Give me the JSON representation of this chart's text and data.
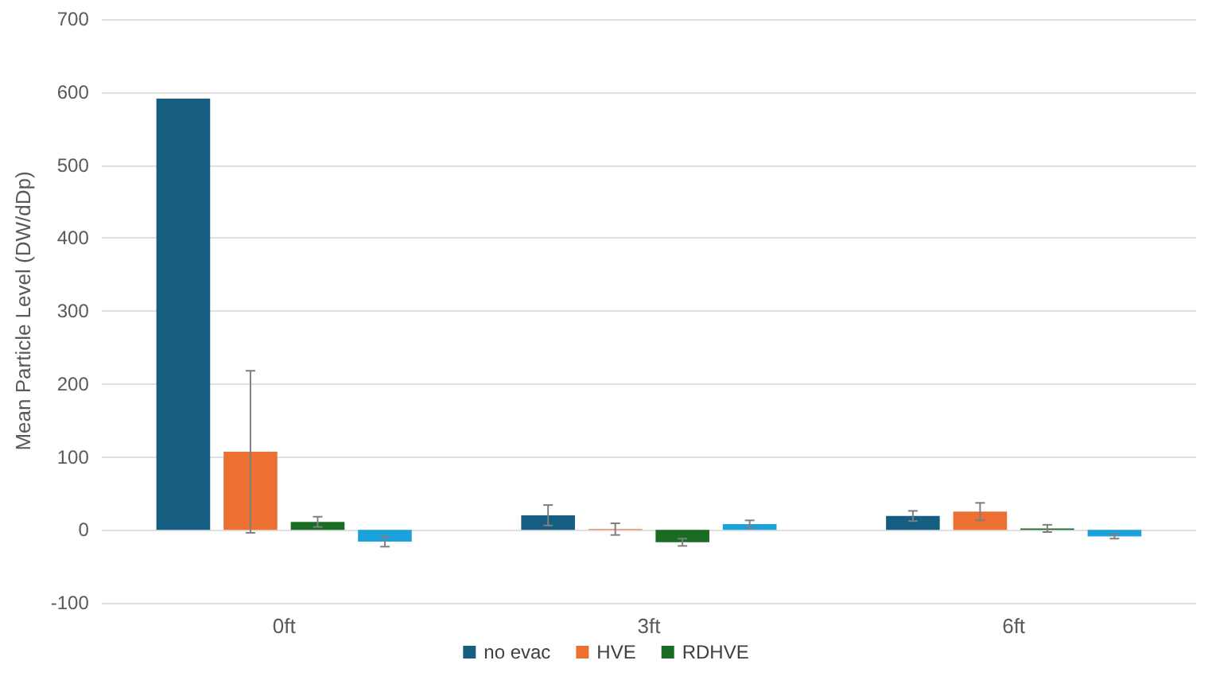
{
  "chart_data": {
    "type": "bar",
    "ylabel": "Mean Particle Level (DW/dDp)",
    "categories": [
      "0ft",
      "3ft",
      "6ft"
    ],
    "series": [
      {
        "name": "no evac",
        "color": "#155e82",
        "values": [
          591,
          20,
          19
        ],
        "errors": [
          null,
          14,
          7
        ]
      },
      {
        "name": "HVE",
        "color": "#ec7031",
        "values": [
          107,
          1,
          25
        ],
        "errors": [
          111,
          8,
          12
        ]
      },
      {
        "name": "RDHVE",
        "color": "#1a6b24",
        "values": [
          11,
          -17,
          2
        ],
        "errors": [
          7,
          5,
          5
        ]
      },
      {
        "color": "#1ba1dc",
        "values": [
          -16,
          8,
          -9
        ],
        "errors": [
          7,
          5,
          3
        ]
      }
    ],
    "ylim": [
      -100,
      700
    ],
    "yticks": [
      -100,
      0,
      100,
      200,
      300,
      400,
      500,
      600,
      700
    ],
    "grid": "y",
    "legend": "bottom"
  }
}
